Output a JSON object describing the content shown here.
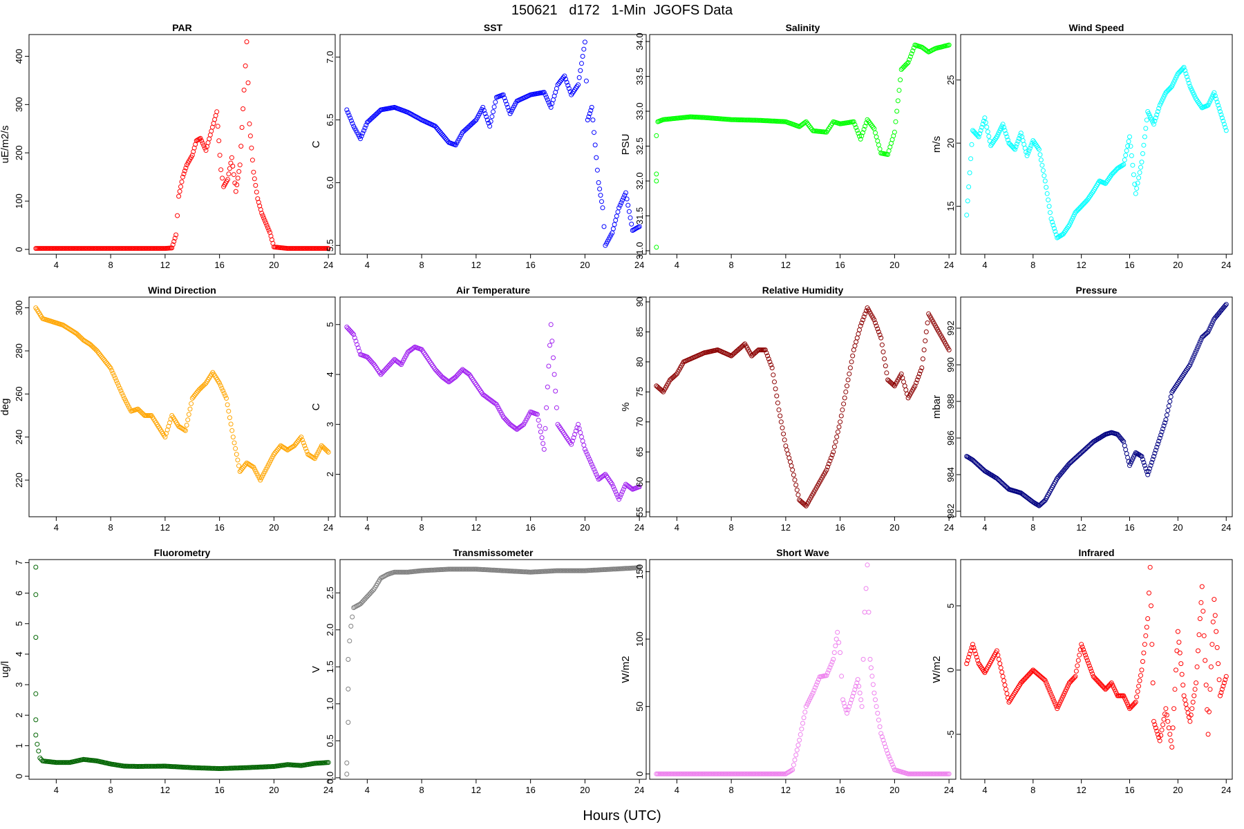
{
  "figure": {
    "title": "150621   d172   1-Min  JGOFS Data",
    "xlabel": "Hours (UTC)"
  },
  "chart_data": [
    {
      "type": "scatter",
      "title": "PAR",
      "ylabel": "uE/m2/s",
      "color": "#ff0000",
      "xlim": [
        2,
        24.5
      ],
      "ylim": [
        -10,
        445
      ],
      "xticks": [
        4,
        8,
        12,
        16,
        20,
        24
      ],
      "yticks": [
        0,
        100,
        200,
        300,
        400
      ],
      "x": [
        2.5,
        4,
        6,
        8,
        10,
        12,
        12.5,
        12.8,
        13,
        13.3,
        13.6,
        14,
        14.3,
        14.6,
        15,
        15.4,
        15.8,
        16.1,
        16.3,
        16.6,
        16.9,
        17.2,
        17.5,
        17.8,
        18.0,
        18.2,
        18.5,
        18.8,
        19.1,
        19.4,
        19.7,
        20,
        21,
        22,
        24
      ],
      "y": [
        2,
        2,
        2,
        2,
        2,
        2,
        3,
        30,
        110,
        150,
        175,
        195,
        225,
        230,
        205,
        245,
        285,
        165,
        130,
        145,
        190,
        120,
        175,
        330,
        430,
        260,
        160,
        105,
        75,
        55,
        35,
        5,
        2,
        2,
        2
      ]
    },
    {
      "type": "scatter",
      "title": "SST",
      "ylabel": "C",
      "color": "#0000ff",
      "xlim": [
        2,
        24.5
      ],
      "ylim": [
        5.43,
        7.18
      ],
      "xticks": [
        4,
        8,
        12,
        16,
        20,
        24
      ],
      "yticks": [
        5.5,
        6.0,
        6.5,
        7.0
      ],
      "x": [
        2.5,
        3,
        3.5,
        4,
        5,
        6,
        7,
        8,
        9,
        10,
        10.5,
        11,
        12,
        12.5,
        13,
        13.5,
        14,
        14.5,
        15,
        16,
        17,
        17.5,
        18,
        18.5,
        19,
        19.5,
        20,
        20.2,
        20.5,
        21,
        21.3,
        21.5,
        22,
        22.5,
        23,
        23.5,
        24
      ],
      "y": [
        6.58,
        6.45,
        6.35,
        6.48,
        6.58,
        6.6,
        6.56,
        6.5,
        6.45,
        6.32,
        6.3,
        6.4,
        6.5,
        6.6,
        6.45,
        6.68,
        6.7,
        6.55,
        6.65,
        6.7,
        6.72,
        6.6,
        6.78,
        6.85,
        6.7,
        6.78,
        7.12,
        6.5,
        6.6,
        6.0,
        5.8,
        5.5,
        5.6,
        5.8,
        5.92,
        5.62,
        5.65
      ]
    },
    {
      "type": "scatter",
      "title": "Salinity",
      "ylabel": "PSU",
      "color": "#00ff00",
      "xlim": [
        2,
        24.5
      ],
      "ylim": [
        30.95,
        34.1
      ],
      "xticks": [
        4,
        8,
        12,
        16,
        20,
        24
      ],
      "yticks": [
        31.0,
        31.5,
        32.0,
        32.5,
        33.0,
        33.5,
        34.0
      ],
      "x": [
        2.5,
        2.5,
        2.5,
        2.5,
        2.6,
        3,
        4,
        5,
        6,
        8,
        10,
        12,
        13,
        13.5,
        14,
        15,
        15.5,
        16,
        17,
        17.5,
        18,
        18.5,
        19,
        19.5,
        20,
        20.5,
        21,
        21.5,
        22,
        22.5,
        23,
        24
      ],
      "y": [
        31.05,
        32.0,
        32.1,
        32.65,
        32.85,
        32.88,
        32.9,
        32.92,
        32.91,
        32.88,
        32.87,
        32.85,
        32.78,
        32.85,
        32.72,
        32.7,
        32.85,
        32.82,
        32.85,
        32.6,
        32.88,
        32.75,
        32.4,
        32.38,
        32.7,
        33.6,
        33.7,
        33.95,
        33.92,
        33.85,
        33.9,
        33.95
      ]
    },
    {
      "type": "scatter",
      "title": "Wind Speed",
      "ylabel": "m/s",
      "color": "#00ffff",
      "xlim": [
        2,
        24.5
      ],
      "ylim": [
        11.2,
        28.6
      ],
      "xticks": [
        4,
        8,
        12,
        16,
        20,
        24
      ],
      "yticks": [
        15,
        20,
        25
      ],
      "x": [
        2.5,
        3,
        3.5,
        4,
        4.5,
        5,
        5.5,
        6,
        6.5,
        7,
        7.5,
        8,
        8.5,
        9,
        9.5,
        10,
        10.5,
        11,
        11.5,
        12,
        12.5,
        13,
        13.5,
        14,
        14.5,
        15,
        15.5,
        16,
        16.5,
        17,
        17.5,
        18,
        18.5,
        19,
        19.5,
        20,
        20.5,
        21,
        21.5,
        22,
        22.5,
        23,
        23.5,
        24
      ],
      "y": [
        14.3,
        21,
        20.5,
        22,
        19.8,
        20.5,
        21.5,
        20,
        19.5,
        20.8,
        19,
        20.2,
        19.5,
        17,
        14,
        12.5,
        12.8,
        13.5,
        14.5,
        15,
        15.5,
        16.2,
        17,
        16.8,
        17.5,
        18,
        18.3,
        20.5,
        16,
        18.5,
        22.5,
        21.5,
        23,
        24,
        24.5,
        25.5,
        26,
        24.5,
        23.5,
        22.8,
        23,
        24,
        22.5,
        21
      ]
    },
    {
      "type": "scatter",
      "title": "Wind Direction",
      "ylabel": "deg",
      "color": "#ffa500",
      "xlim": [
        2,
        24.5
      ],
      "ylim": [
        203,
        305
      ],
      "xticks": [
        4,
        8,
        12,
        16,
        20,
        24
      ],
      "yticks": [
        220,
        240,
        260,
        280,
        300
      ],
      "x": [
        2.5,
        3,
        4,
        4.5,
        5,
        5.5,
        6,
        6.5,
        7,
        7.5,
        8,
        8.5,
        9,
        9.5,
        10,
        10.5,
        11,
        11.5,
        12,
        12.5,
        13,
        13.5,
        14,
        14.5,
        15,
        15.5,
        16,
        16.5,
        17,
        17.5,
        18,
        18.5,
        19,
        20,
        20.5,
        21,
        21.5,
        22,
        22.5,
        23,
        23.5,
        24
      ],
      "y": [
        300,
        295,
        293,
        292,
        290,
        288,
        285,
        283,
        280,
        276,
        272,
        265,
        258,
        252,
        253,
        250,
        250,
        245,
        240,
        250,
        245,
        243,
        258,
        262,
        265,
        270,
        265,
        258,
        240,
        224,
        228,
        226,
        220,
        232,
        236,
        234,
        236,
        240,
        232,
        230,
        236,
        233
      ]
    },
    {
      "type": "scatter",
      "title": "Air Temperature",
      "ylabel": "C",
      "color": "#a020f0",
      "xlim": [
        2,
        24.5
      ],
      "ylim": [
        1.15,
        5.55
      ],
      "xticks": [
        4,
        8,
        12,
        16,
        20,
        24
      ],
      "yticks": [
        2,
        3,
        4,
        5
      ],
      "x": [
        2.5,
        3,
        3.5,
        4,
        4.5,
        5,
        5.5,
        6,
        6.5,
        7,
        7.5,
        8,
        8.5,
        9,
        9.5,
        10,
        10.5,
        11,
        11.5,
        12,
        12.5,
        13,
        13.5,
        14,
        14.5,
        15,
        15.5,
        16,
        16.5,
        17,
        17.5,
        18,
        18.5,
        19,
        19.5,
        20,
        20.5,
        21,
        21.5,
        22,
        22.5,
        23,
        23.5,
        24
      ],
      "y": [
        4.95,
        4.8,
        4.4,
        4.35,
        4.2,
        4.0,
        4.15,
        4.3,
        4.2,
        4.45,
        4.55,
        4.5,
        4.3,
        4.1,
        3.95,
        3.85,
        3.95,
        4.1,
        4.0,
        3.8,
        3.6,
        3.5,
        3.4,
        3.15,
        3.0,
        2.9,
        3.0,
        3.25,
        3.2,
        2.5,
        5.0,
        3.0,
        2.8,
        2.6,
        3.0,
        2.5,
        2.2,
        1.9,
        2.0,
        1.8,
        1.5,
        1.8,
        1.7,
        1.75
      ]
    },
    {
      "type": "scatter",
      "title": "Relative Humidity",
      "ylabel": "%",
      "color": "#8b0000",
      "xlim": [
        2,
        24.5
      ],
      "ylim": [
        54.2,
        90.8
      ],
      "xticks": [
        4,
        8,
        12,
        16,
        20,
        24
      ],
      "yticks": [
        55,
        60,
        65,
        70,
        75,
        80,
        85,
        90
      ],
      "x": [
        2.5,
        3,
        3.5,
        4,
        4.5,
        5,
        5.5,
        6,
        7,
        8,
        9,
        9.5,
        10,
        10.5,
        11,
        11.5,
        12,
        12.5,
        13,
        13.5,
        14,
        14.5,
        15,
        15.5,
        16,
        16.5,
        17,
        17.5,
        18,
        18.5,
        19,
        19.5,
        20,
        20.5,
        21,
        21.5,
        22,
        22.5,
        23,
        23.5,
        24
      ],
      "y": [
        76,
        75,
        77,
        78,
        80,
        80.5,
        81,
        81.5,
        82,
        81,
        83,
        81,
        82,
        82,
        79,
        72,
        66,
        62,
        57,
        56,
        58,
        60,
        62,
        65,
        70,
        76,
        82,
        86,
        89,
        87,
        84,
        77,
        76,
        78,
        74,
        76,
        79,
        88,
        86,
        84,
        82
      ]
    },
    {
      "type": "scatter",
      "title": "Pressure",
      "ylabel": "mbar",
      "color": "#000080",
      "xlim": [
        2,
        24.5
      ],
      "ylim": [
        981.7,
        993.7
      ],
      "xticks": [
        4,
        8,
        12,
        16,
        20,
        24
      ],
      "yticks": [
        982,
        984,
        986,
        988,
        990,
        992
      ],
      "x": [
        2.5,
        3,
        4,
        5,
        6,
        7,
        8,
        8.5,
        9,
        10,
        11,
        12,
        13,
        14,
        14.5,
        15,
        15.5,
        16,
        16.5,
        17,
        17.5,
        18,
        18.5,
        19,
        19.5,
        20,
        21,
        22,
        22.5,
        23,
        24
      ],
      "y": [
        985,
        984.8,
        984.2,
        983.8,
        983.2,
        983,
        982.5,
        982.3,
        982.6,
        983.8,
        984.6,
        985.2,
        985.8,
        986.2,
        986.3,
        986.2,
        985.8,
        984.5,
        985.2,
        985,
        984,
        985,
        986,
        987,
        988.5,
        989,
        990,
        991.5,
        991.8,
        992.5,
        993.3
      ]
    },
    {
      "type": "scatter",
      "title": "Fluorometry",
      "ylabel": "ug/l",
      "color": "#006400",
      "xlim": [
        2,
        24.5
      ],
      "ylim": [
        -0.1,
        7.1
      ],
      "xticks": [
        4,
        8,
        12,
        16,
        20,
        24
      ],
      "yticks": [
        0,
        1,
        2,
        3,
        4,
        5,
        6,
        7
      ],
      "x": [
        2.5,
        2.5,
        2.5,
        2.5,
        2.5,
        2.5,
        2.6,
        2.8,
        3,
        4,
        5,
        6,
        7,
        8,
        9,
        10,
        12,
        14,
        16,
        18,
        20,
        21,
        22,
        23,
        24
      ],
      "y": [
        6.85,
        5.95,
        4.55,
        2.7,
        1.85,
        1.35,
        1.05,
        0.6,
        0.5,
        0.45,
        0.45,
        0.55,
        0.5,
        0.4,
        0.33,
        0.32,
        0.33,
        0.28,
        0.25,
        0.28,
        0.32,
        0.38,
        0.35,
        0.42,
        0.45
      ]
    },
    {
      "type": "scatter",
      "title": "Transmissometer",
      "ylabel": "V",
      "color": "#808080",
      "xlim": [
        2,
        24.5
      ],
      "ylim": [
        -0.02,
        2.95
      ],
      "xticks": [
        4,
        8,
        12,
        16,
        20,
        24
      ],
      "yticks": [
        0.0,
        0.5,
        1.0,
        1.5,
        2.0,
        2.5
      ],
      "x": [
        2.5,
        2.5,
        2.6,
        2.6,
        2.6,
        2.7,
        2.8,
        3,
        3.5,
        4,
        4.5,
        5,
        5.5,
        6,
        7,
        8,
        10,
        12,
        14,
        16,
        18,
        20,
        22,
        24
      ],
      "y": [
        0.05,
        0.2,
        0.75,
        1.2,
        1.6,
        1.85,
        2.05,
        2.3,
        2.35,
        2.45,
        2.55,
        2.7,
        2.75,
        2.78,
        2.78,
        2.8,
        2.82,
        2.82,
        2.8,
        2.78,
        2.8,
        2.8,
        2.82,
        2.84
      ]
    },
    {
      "type": "scatter",
      "title": "Short Wave",
      "ylabel": "W/m2",
      "color": "#ee82ee",
      "xlim": [
        2,
        24.5
      ],
      "ylim": [
        -4,
        159
      ],
      "xticks": [
        4,
        8,
        12,
        16,
        20,
        24
      ],
      "yticks": [
        0,
        50,
        100,
        150
      ],
      "x": [
        2.5,
        4,
        6,
        8,
        10,
        12,
        12.5,
        13,
        13.5,
        14,
        14.5,
        15,
        15.5,
        15.8,
        16,
        16.2,
        16.5,
        17,
        17.3,
        17.6,
        17.8,
        18,
        18.2,
        18.5,
        19,
        19.5,
        20,
        21,
        22,
        24
      ],
      "y": [
        0,
        0,
        0,
        0,
        0,
        0,
        3,
        25,
        50,
        60,
        72,
        73,
        85,
        105,
        90,
        55,
        45,
        60,
        70,
        50,
        120,
        155,
        85,
        60,
        30,
        15,
        3,
        0,
        0,
        0
      ]
    },
    {
      "type": "scatter",
      "title": "Infrared",
      "ylabel": "W/m2",
      "color": "#ff0000",
      "xlim": [
        2,
        24.5
      ],
      "ylim": [
        -8.5,
        8.6
      ],
      "xticks": [
        4,
        8,
        12,
        16,
        20,
        24
      ],
      "yticks": [
        -5,
        0,
        5
      ],
      "x": [
        2.5,
        3,
        3.5,
        4,
        5,
        6,
        7,
        7.5,
        8,
        9,
        10,
        10.5,
        11,
        11.5,
        12,
        13,
        14,
        14.5,
        15,
        15.5,
        16,
        16.5,
        17,
        17.5,
        17.7,
        18,
        18.5,
        19,
        19.5,
        20,
        20.5,
        21,
        21.5,
        22,
        22.5,
        23,
        23.5,
        24
      ],
      "y": [
        0.5,
        2,
        0.5,
        -0.2,
        1.5,
        -2.5,
        -1,
        -0.5,
        0,
        -0.8,
        -3,
        -2,
        -1,
        -0.5,
        2,
        -0.5,
        -1.5,
        -1,
        -2,
        -2,
        -3,
        -2.5,
        0,
        4,
        8,
        -4,
        -5.5,
        -3,
        -6,
        3,
        -2,
        -4,
        -1,
        6.5,
        -5,
        5.5,
        -2,
        -0.5
      ]
    }
  ]
}
